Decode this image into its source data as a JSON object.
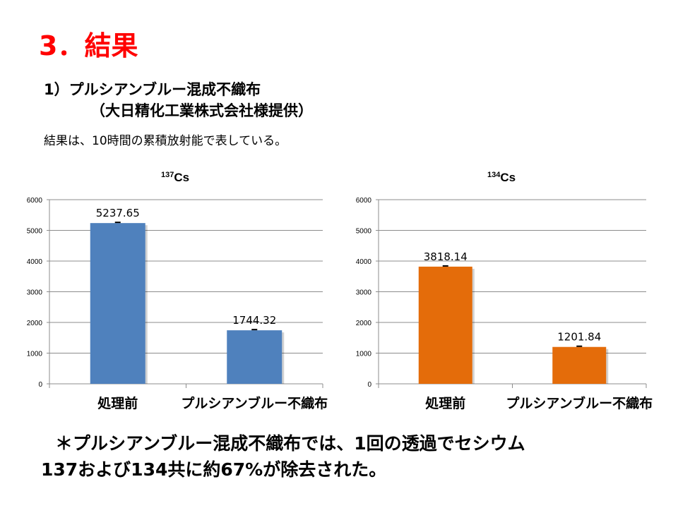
{
  "slide": {
    "title": "3．結果",
    "subtitle_line1": "1）プルシアンブルー混成不織布",
    "subtitle_line2": "（大日精化工業株式会社様提供）",
    "note": "結果は、10時間の累積放射能で表している。",
    "conclusion_line1": "＊プルシアンブルー混成不織布では、1回の透過でセシウム",
    "conclusion_line2": "137および134共に約67%が除去された。"
  },
  "chart_data": [
    {
      "type": "bar",
      "title_sup": "137",
      "title": "Cs",
      "categories": [
        "処理前",
        "プルシアンブルー不織布"
      ],
      "values": [
        5237.65,
        1744.32
      ],
      "data_labels": [
        "5237.65",
        "1744.32"
      ],
      "ylim": [
        0,
        6000
      ],
      "yticks": [
        "0",
        "1000",
        "2000",
        "3000",
        "4000",
        "5000",
        "6000"
      ],
      "grid": true,
      "color": "#4f81bd",
      "error_bars": true
    },
    {
      "type": "bar",
      "title_sup": "134",
      "title": "Cs",
      "categories": [
        "処理前",
        "プルシアンブルー不織布"
      ],
      "values": [
        3818.14,
        1201.84
      ],
      "data_labels": [
        "3818.14",
        "1201.84"
      ],
      "ylim": [
        0,
        6000
      ],
      "yticks": [
        "0",
        "1000",
        "2000",
        "3000",
        "4000",
        "5000",
        "6000"
      ],
      "grid": true,
      "color": "#e46c0a",
      "error_bars": true
    }
  ]
}
